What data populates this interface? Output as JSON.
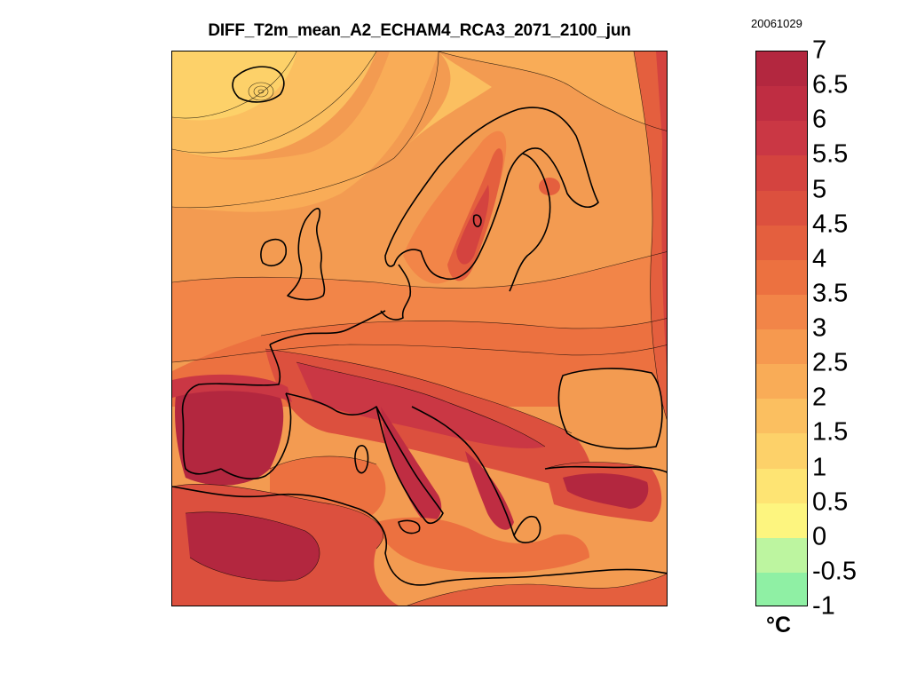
{
  "title": "DIFF_T2m_mean_A2_ECHAM4_RCA3_2071_2100_jun",
  "date_stamp": "20061029",
  "colorbar": {
    "unit": "°C",
    "range": [
      -1,
      7
    ],
    "tick_labels": [
      "7",
      "6.5",
      "6",
      "5.5",
      "5",
      "4.5",
      "4",
      "3.5",
      "3",
      "2.5",
      "2",
      "1.5",
      "1",
      "0.5",
      "0",
      "-0.5",
      "-1"
    ],
    "bands": [
      {
        "from": 6.5,
        "to": 7.0,
        "color": "#b3273f"
      },
      {
        "from": 6.0,
        "to": 6.5,
        "color": "#bf2d42"
      },
      {
        "from": 5.5,
        "to": 6.0,
        "color": "#ca3744"
      },
      {
        "from": 5.0,
        "to": 5.5,
        "color": "#d4433f"
      },
      {
        "from": 4.5,
        "to": 5.0,
        "color": "#dc503e"
      },
      {
        "from": 4.0,
        "to": 4.5,
        "color": "#e45f3e"
      },
      {
        "from": 3.5,
        "to": 4.0,
        "color": "#ec7140"
      },
      {
        "from": 3.0,
        "to": 3.5,
        "color": "#f28548"
      },
      {
        "from": 2.5,
        "to": 3.0,
        "color": "#f6994f"
      },
      {
        "from": 2.0,
        "to": 2.5,
        "color": "#f9ac57"
      },
      {
        "from": 1.5,
        "to": 2.0,
        "color": "#fbbf60"
      },
      {
        "from": 1.0,
        "to": 1.5,
        "color": "#fdd169"
      },
      {
        "from": 0.5,
        "to": 1.0,
        "color": "#fee473"
      },
      {
        "from": 0.0,
        "to": 0.5,
        "color": "#fdf57f"
      },
      {
        "from": -0.5,
        "to": 0.0,
        "color": "#bdf5a0"
      },
      {
        "from": -1.0,
        "to": -0.5,
        "color": "#8ff0a4"
      }
    ]
  }
}
